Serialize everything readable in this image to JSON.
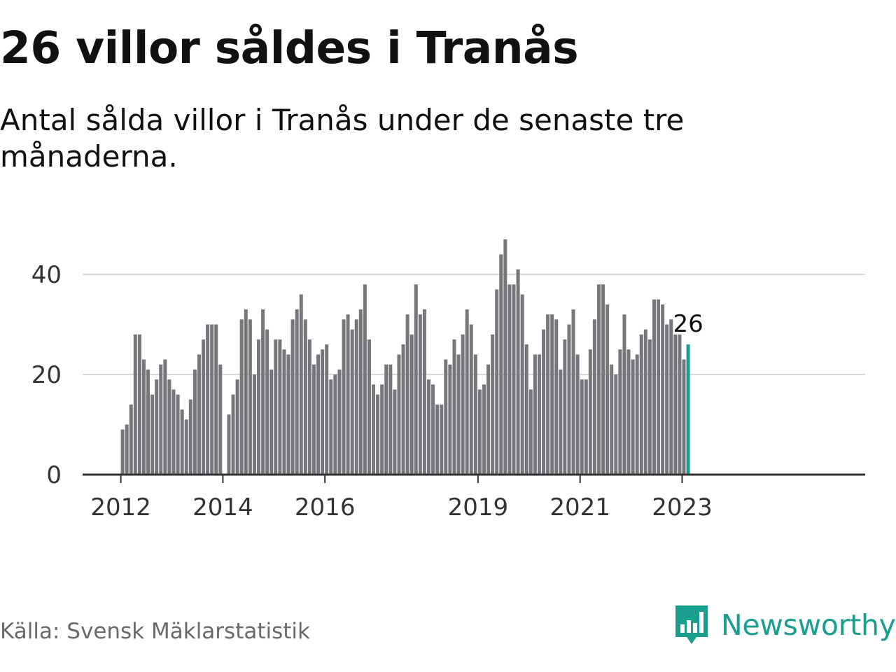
{
  "title": "26 villor såldes i Tranås",
  "subtitle": "Antal sålda villor i Tranås under de senaste tre månaderna.",
  "source": "Källa: Svensk Mäklarstatistik",
  "logo": {
    "name": "Newsworthy",
    "icon": "bar-chart-speech-bubble-icon"
  },
  "colors": {
    "bar": "#76767b",
    "highlight": "#1a9e8e",
    "grid": "#d9d9d9",
    "axis": "#333333"
  },
  "chart_data": {
    "type": "bar",
    "title": "26 villor såldes i Tranås",
    "subtitle": "Antal sålda villor i Tranås under de senaste tre månaderna.",
    "frequency": "monthly",
    "start": "2012-01",
    "end": "2023-02",
    "values": [
      9,
      10,
      14,
      28,
      28,
      23,
      21,
      16,
      19,
      22,
      23,
      19,
      17,
      16,
      13,
      11,
      15,
      21,
      24,
      27,
      30,
      30,
      30,
      22,
      0,
      12,
      16,
      19,
      31,
      33,
      31,
      20,
      27,
      33,
      29,
      21,
      27,
      27,
      25,
      24,
      31,
      33,
      36,
      31,
      27,
      22,
      24,
      25,
      26,
      19,
      20,
      21,
      31,
      32,
      29,
      31,
      33,
      38,
      27,
      18,
      16,
      18,
      22,
      22,
      17,
      24,
      26,
      32,
      28,
      38,
      32,
      33,
      19,
      18,
      14,
      14,
      23,
      22,
      27,
      24,
      28,
      33,
      30,
      24,
      17,
      18,
      22,
      28,
      37,
      44,
      47,
      38,
      38,
      41,
      36,
      26,
      17,
      24,
      24,
      29,
      32,
      32,
      31,
      21,
      27,
      30,
      33,
      24,
      19,
      19,
      25,
      31,
      38,
      38,
      34,
      22,
      20,
      25,
      32,
      25,
      23,
      24,
      28,
      29,
      27,
      35,
      35,
      34,
      30,
      31,
      28,
      28,
      23,
      26
    ],
    "highlight_last": true,
    "last_value_label": "26",
    "yticks": [
      0,
      20,
      40
    ],
    "ylim": [
      0,
      47
    ],
    "xticks": [
      "2012",
      "2014",
      "2016",
      "2019",
      "2021",
      "2023"
    ],
    "grid": true,
    "legend": "none"
  }
}
